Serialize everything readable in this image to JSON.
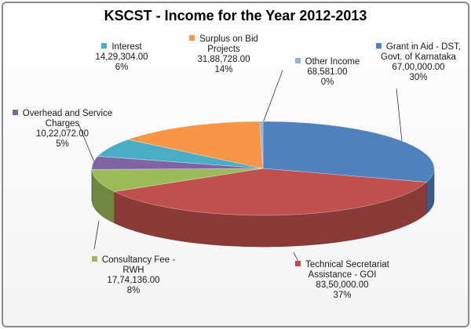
{
  "chart_data": {
    "type": "pie",
    "title": "KSCST - Income for the Year 2012-2013",
    "slices": [
      {
        "label": "Grant in Aid - DST, Govt. of Karnataka",
        "value_text": "67,00,000.00",
        "value": 6700000,
        "percent": "30%",
        "color": "#4F81BD"
      },
      {
        "label": "Technical Secretariat Assistance - GOI",
        "value_text": "83,50,000.00",
        "value": 8350000,
        "percent": "37%",
        "color": "#C0504D"
      },
      {
        "label": "Consultancy Fee - RWH",
        "value_text": "17,74,136.00",
        "value": 1774136,
        "percent": "8%",
        "color": "#9BBB59"
      },
      {
        "label": "Overhead and Service Charges",
        "value_text": "10,22,072.00",
        "value": 1022072,
        "percent": "5%",
        "color": "#8064A2"
      },
      {
        "label": "Interest",
        "value_text": "14,29,304.00",
        "value": 1429304,
        "percent": "6%",
        "color": "#4BACC6"
      },
      {
        "label": "Surplus on Bid Projects",
        "value_text": "31,88,728.00",
        "value": 3188728,
        "percent": "14%",
        "color": "#F79646"
      },
      {
        "label": "Other Income",
        "value_text": "68,581.00",
        "value": 68581,
        "percent": "0%",
        "color": "#95B3D7"
      }
    ]
  }
}
